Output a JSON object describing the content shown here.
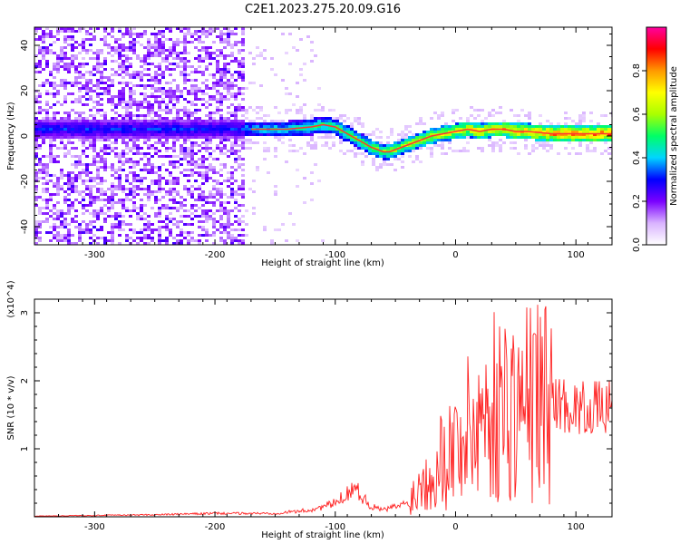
{
  "title": "C2E1.2023.275.20.09.G16",
  "chart_data": [
    {
      "type": "heatmap",
      "xlabel": "Height of straight line (km)",
      "ylabel": "Frequency (Hz)",
      "xlim": [
        -350,
        130
      ],
      "ylim": [
        -48,
        48
      ],
      "xticks": [
        -300,
        -200,
        -100,
        0,
        100
      ],
      "yticks": [
        -40,
        -20,
        0,
        20,
        40
      ],
      "grid": false,
      "colorbar": {
        "label": "Normalized spectral amplitude",
        "range": [
          0.0,
          1.0
        ],
        "ticks": [
          0.0,
          0.2,
          0.4,
          0.6,
          0.8
        ],
        "colors": [
          "#ffffff",
          "#d9b3ff",
          "#7a00ff",
          "#0000ff",
          "#00d5ff",
          "#00ff66",
          "#aaff00",
          "#ffff00",
          "#ff9900",
          "#ff0000",
          "#ff00a0"
        ]
      },
      "ridge": {
        "name": "",
        "x": [
          -170,
          -140,
          -120,
          -110,
          -100,
          -90,
          -80,
          -70,
          -60,
          -55,
          -50,
          -40,
          -30,
          -20,
          -10,
          0,
          10,
          20,
          30,
          40,
          50,
          60,
          80,
          100,
          130
        ],
        "y": [
          3,
          3,
          4,
          5,
          4,
          1,
          -2,
          -5,
          -7,
          -7,
          -6,
          -4,
          -2,
          0,
          1,
          2,
          3,
          2,
          3,
          3,
          2,
          2,
          1,
          1,
          1
        ]
      }
    },
    {
      "type": "line",
      "xlabel": "Height of straight line (km)",
      "ylabel": "SNR (10 * v/v)",
      "yscale_label": "(x10^4)",
      "xlim": [
        -350,
        130
      ],
      "ylim": [
        0,
        3.2
      ],
      "xticks": [
        -300,
        -200,
        -100,
        0,
        100
      ],
      "yticks": [
        1,
        2,
        3
      ],
      "grid": false,
      "series": [
        {
          "name": "",
          "color": "#ff2020",
          "x": [
            -350,
            -300,
            -250,
            -200,
            -150,
            -120,
            -100,
            -90,
            -85,
            -80,
            -70,
            -60,
            -50,
            -40,
            -30,
            -20,
            -10,
            0,
            10,
            20,
            30,
            40,
            50,
            60,
            70,
            80,
            90,
            100,
            110,
            120,
            130
          ],
          "y": [
            0.01,
            0.02,
            0.03,
            0.05,
            0.05,
            0.1,
            0.2,
            0.35,
            0.45,
            0.35,
            0.15,
            0.1,
            0.15,
            0.2,
            0.45,
            0.7,
            0.9,
            1.05,
            1.25,
            1.45,
            1.6,
            1.65,
            1.6,
            1.7,
            1.75,
            1.7,
            1.65,
            1.6,
            1.6,
            1.6,
            1.6
          ]
        }
      ]
    }
  ]
}
